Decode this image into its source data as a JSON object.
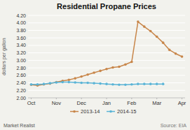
{
  "chart_data": {
    "type": "line",
    "title": "Residential Propane Prices",
    "ylabel": "dollars per gallon",
    "x": [
      0,
      1,
      2,
      3,
      4,
      5,
      6,
      7,
      8,
      9,
      10,
      11,
      12,
      13,
      14,
      15,
      16,
      17,
      18,
      19,
      20,
      21,
      22,
      23,
      24
    ],
    "xlim": [
      -0.5,
      24.5
    ],
    "xticks": [
      {
        "value": 0,
        "label": "Oct"
      },
      {
        "value": 4,
        "label": "Nov"
      },
      {
        "value": 8,
        "label": "Dec"
      },
      {
        "value": 12,
        "label": "Jan"
      },
      {
        "value": 16,
        "label": "Feb"
      },
      {
        "value": 20,
        "label": "Mar"
      },
      {
        "value": 24,
        "label": "Apr"
      }
    ],
    "ylim": [
      2.0,
      4.2
    ],
    "yticks": [
      {
        "value": 2.0,
        "label": "2.00"
      },
      {
        "value": 2.2,
        "label": "2.20"
      },
      {
        "value": 2.4,
        "label": "2.40"
      },
      {
        "value": 2.6,
        "label": "2.60"
      },
      {
        "value": 2.8,
        "label": "2.80"
      },
      {
        "value": 3.0,
        "label": "3.00"
      },
      {
        "value": 3.2,
        "label": "3.20"
      },
      {
        "value": 3.4,
        "label": "3.40"
      },
      {
        "value": 3.6,
        "label": "3.60"
      },
      {
        "value": 3.8,
        "label": "3.80"
      },
      {
        "value": 4.0,
        "label": "4.00"
      },
      {
        "value": 4.2,
        "label": "4.20"
      }
    ],
    "series": [
      {
        "name": "2013-14",
        "color": "#c8864a",
        "marker": "circle",
        "values": [
          2.35,
          2.33,
          2.36,
          2.38,
          2.42,
          2.45,
          2.48,
          2.52,
          2.57,
          2.62,
          2.67,
          2.72,
          2.77,
          2.81,
          2.83,
          2.89,
          2.96,
          4.03,
          3.9,
          3.78,
          3.63,
          3.47,
          3.28,
          3.18,
          3.1
        ]
      },
      {
        "name": "2014-15",
        "color": "#5ab4d6",
        "marker": "circle",
        "values": [
          2.36,
          2.36,
          2.37,
          2.39,
          2.41,
          2.42,
          2.42,
          2.41,
          2.4,
          2.4,
          2.39,
          2.38,
          2.37,
          2.36,
          2.35,
          2.35,
          2.36,
          2.37,
          2.37,
          2.37,
          2.37,
          2.37,
          null,
          null,
          null
        ]
      }
    ],
    "grid": true,
    "legend": "bottom",
    "annotations": [
      "Market Realist",
      "Source: EIA"
    ]
  }
}
